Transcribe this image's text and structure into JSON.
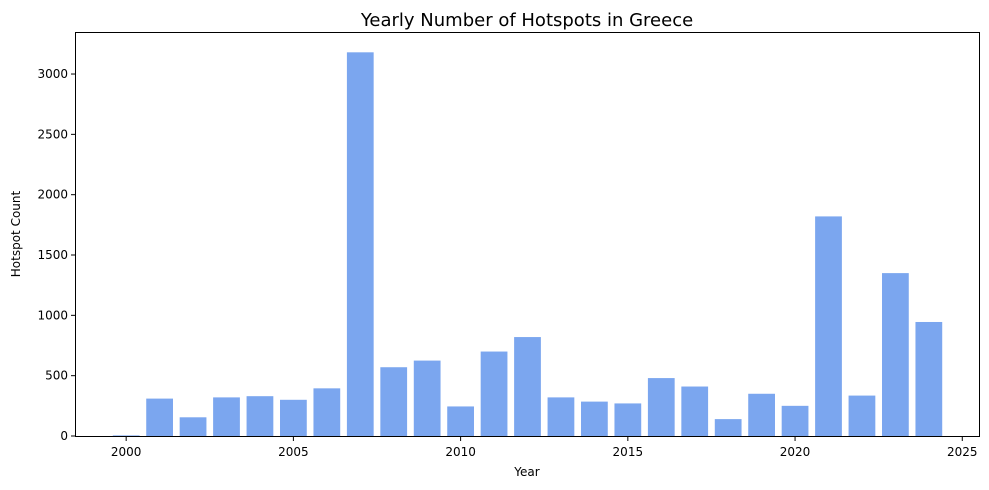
{
  "chart_data": {
    "type": "bar",
    "title": "Yearly Number of Hotspots in Greece",
    "xlabel": "Year",
    "ylabel": "Hotspot Count",
    "x": [
      2000,
      2001,
      2002,
      2003,
      2004,
      2005,
      2006,
      2007,
      2008,
      2009,
      2010,
      2011,
      2012,
      2013,
      2014,
      2015,
      2016,
      2017,
      2018,
      2019,
      2020,
      2021,
      2022,
      2023,
      2024
    ],
    "values": [
      5,
      310,
      155,
      320,
      330,
      300,
      395,
      3180,
      570,
      625,
      245,
      700,
      820,
      320,
      285,
      270,
      480,
      410,
      140,
      350,
      250,
      1820,
      335,
      1350,
      945
    ],
    "xlim": [
      1998.5,
      2025.5
    ],
    "ylim": [
      0,
      3340
    ],
    "xticks": [
      2000,
      2005,
      2010,
      2015,
      2020,
      2025
    ],
    "yticks": [
      0,
      500,
      1000,
      1500,
      2000,
      2500,
      3000
    ],
    "bar_color": "#7ba6ef",
    "grid": false,
    "legend": false
  }
}
